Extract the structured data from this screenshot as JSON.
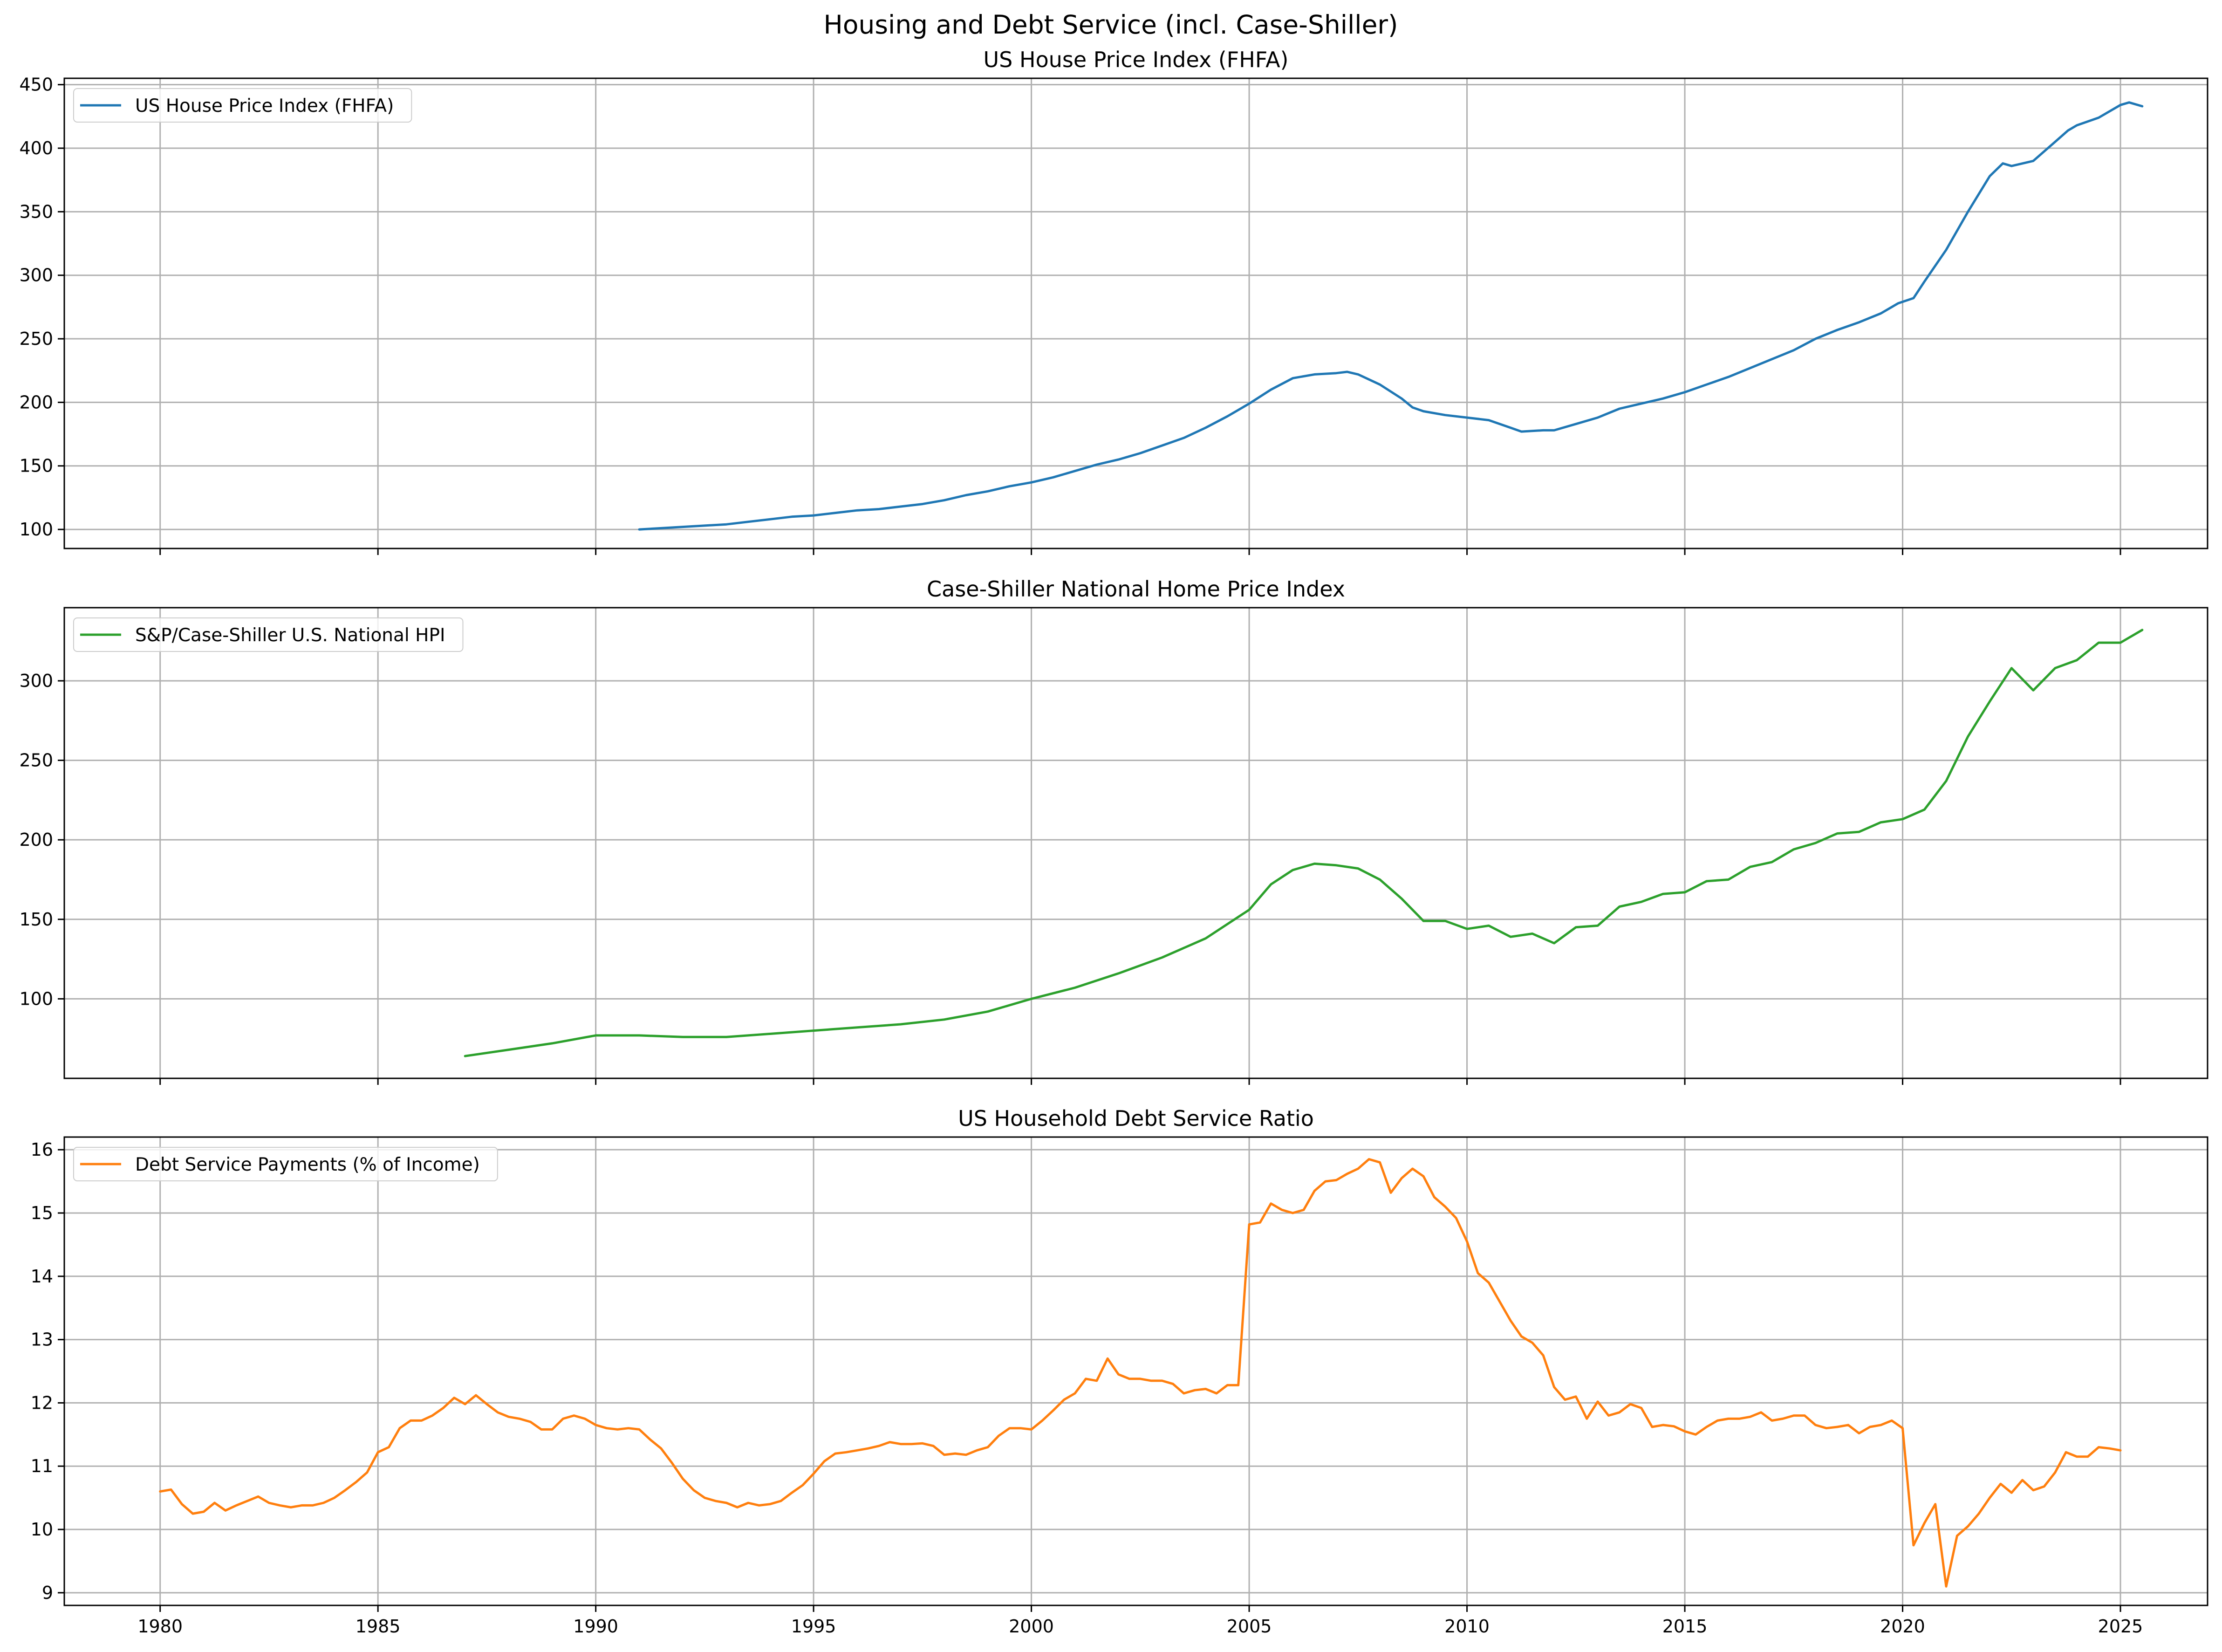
{
  "figure": {
    "title": "Housing and Debt Service (incl. Case-Shiller)"
  },
  "chart_data": [
    {
      "type": "line",
      "title": "US House Price Index (FHFA)",
      "xlabel": "",
      "ylabel": "",
      "xlim": [
        1977.8,
        2027.0
      ],
      "ylim": [
        85,
        455
      ],
      "yticks": [
        100,
        150,
        200,
        250,
        300,
        350,
        400,
        450
      ],
      "grid": true,
      "legend_position": "upper-left",
      "series": [
        {
          "name": "US House Price Index (FHFA)",
          "color": "#1f77b4",
          "x": [
            1991.0,
            1991.5,
            1992.0,
            1992.5,
            1993.0,
            1993.5,
            1994.0,
            1994.5,
            1995.0,
            1995.5,
            1996.0,
            1996.5,
            1997.0,
            1997.5,
            1998.0,
            1998.5,
            1999.0,
            1999.5,
            2000.0,
            2000.5,
            2001.0,
            2001.5,
            2002.0,
            2002.5,
            2003.0,
            2003.5,
            2004.0,
            2004.5,
            2005.0,
            2005.5,
            2006.0,
            2006.5,
            2007.0,
            2007.25,
            2007.5,
            2008.0,
            2008.5,
            2008.75,
            2009.0,
            2009.5,
            2010.0,
            2010.5,
            2011.0,
            2011.25,
            2011.75,
            2012.0,
            2012.5,
            2013.0,
            2013.5,
            2014.0,
            2014.5,
            2015.0,
            2015.5,
            2016.0,
            2016.5,
            2017.0,
            2017.5,
            2018.0,
            2018.5,
            2019.0,
            2019.5,
            2019.9,
            2020.25,
            2020.5,
            2021.0,
            2021.5,
            2022.0,
            2022.3,
            2022.5,
            2023.0,
            2023.5,
            2023.8,
            2024.0,
            2024.5,
            2025.0,
            2025.2,
            2025.5
          ],
          "values": [
            100,
            101,
            102,
            103,
            104,
            106,
            108,
            110,
            111,
            113,
            115,
            116,
            118,
            120,
            123,
            127,
            130,
            134,
            137,
            141,
            146,
            151,
            155,
            160,
            166,
            172,
            180,
            189,
            199,
            210,
            219,
            222,
            223,
            224,
            222,
            214,
            203,
            196,
            193,
            190,
            188,
            186,
            180,
            177,
            178,
            178,
            183,
            188,
            195,
            199,
            203,
            208,
            214,
            220,
            227,
            234,
            241,
            250,
            257,
            263,
            270,
            278,
            282,
            295,
            320,
            350,
            378,
            388,
            386,
            390,
            405,
            414,
            418,
            424,
            434,
            436,
            433
          ]
        }
      ]
    },
    {
      "type": "line",
      "title": "Case-Shiller National Home Price Index",
      "xlabel": "",
      "ylabel": "",
      "xlim": [
        1977.8,
        2027.0
      ],
      "ylim": [
        50,
        346
      ],
      "yticks": [
        100,
        150,
        200,
        250,
        300
      ],
      "grid": true,
      "legend_position": "upper-left",
      "series": [
        {
          "name": "S&P/Case-Shiller U.S. National HPI",
          "color": "#2ca02c",
          "x": [
            1987.0,
            1988.0,
            1989.0,
            1990.0,
            1991.0,
            1992.0,
            1993.0,
            1994.0,
            1995.0,
            1996.0,
            1997.0,
            1998.0,
            1999.0,
            2000.0,
            2001.0,
            2002.0,
            2003.0,
            2004.0,
            2005.0,
            2005.5,
            2006.0,
            2006.5,
            2007.0,
            2007.5,
            2008.0,
            2008.5,
            2009.0,
            2009.5,
            2010.0,
            2010.5,
            2011.0,
            2011.5,
            2012.0,
            2012.5,
            2013.0,
            2013.5,
            2014.0,
            2014.5,
            2015.0,
            2015.5,
            2016.0,
            2016.5,
            2017.0,
            2017.5,
            2018.0,
            2018.5,
            2019.0,
            2019.5,
            2020.0,
            2020.5,
            2021.0,
            2021.5,
            2022.0,
            2022.5,
            2023.0,
            2023.5,
            2024.0,
            2024.5,
            2025.0,
            2025.5
          ],
          "values": [
            64,
            68,
            72,
            77,
            77,
            76,
            76,
            78,
            80,
            82,
            84,
            87,
            92,
            100,
            107,
            116,
            126,
            138,
            156,
            172,
            181,
            185,
            184,
            182,
            175,
            163,
            149,
            149,
            144,
            146,
            139,
            141,
            135,
            145,
            146,
            158,
            161,
            166,
            167,
            174,
            175,
            183,
            186,
            194,
            198,
            204,
            205,
            211,
            213,
            219,
            237,
            265,
            287,
            308,
            294,
            308,
            313,
            324,
            324,
            332
          ]
        }
      ]
    },
    {
      "type": "line",
      "title": "US Household Debt Service Ratio",
      "xlabel": "",
      "ylabel": "",
      "xlim": [
        1977.8,
        2027.0
      ],
      "ylim": [
        8.8,
        16.2
      ],
      "xticks": [
        1980,
        1985,
        1990,
        1995,
        2000,
        2005,
        2010,
        2015,
        2020,
        2025
      ],
      "yticks": [
        9,
        10,
        11,
        12,
        13,
        14,
        15,
        16
      ],
      "grid": true,
      "legend_position": "upper-left",
      "series": [
        {
          "name": "Debt Service Payments (% of Income)",
          "color": "#ff7f0e",
          "x": [
            1980.0,
            1980.25,
            1980.5,
            1980.75,
            1981.0,
            1981.25,
            1981.5,
            1981.75,
            1982.0,
            1982.25,
            1982.5,
            1982.75,
            1983.0,
            1983.25,
            1983.5,
            1983.75,
            1984.0,
            1984.25,
            1984.5,
            1984.75,
            1985.0,
            1985.25,
            1985.5,
            1985.75,
            1986.0,
            1986.25,
            1986.5,
            1986.75,
            1987.0,
            1987.25,
            1987.5,
            1987.75,
            1988.0,
            1988.25,
            1988.5,
            1988.75,
            1989.0,
            1989.25,
            1989.5,
            1989.75,
            1990.0,
            1990.25,
            1990.5,
            1990.75,
            1991.0,
            1991.25,
            1991.5,
            1991.75,
            1992.0,
            1992.25,
            1992.5,
            1992.75,
            1993.0,
            1993.25,
            1993.5,
            1993.75,
            1994.0,
            1994.25,
            1994.5,
            1994.75,
            1995.0,
            1995.25,
            1995.5,
            1995.75,
            1996.0,
            1996.25,
            1996.5,
            1996.75,
            1997.0,
            1997.25,
            1997.5,
            1997.75,
            1998.0,
            1998.25,
            1998.5,
            1998.75,
            1999.0,
            1999.25,
            1999.5,
            1999.75,
            2000.0,
            2000.25,
            2000.5,
            2000.75,
            2001.0,
            2001.25,
            2001.5,
            2001.75,
            2002.0,
            2002.25,
            2002.5,
            2002.75,
            2003.0,
            2003.25,
            2003.5,
            2003.75,
            2004.0,
            2004.25,
            2004.5,
            2004.75,
            2005.0,
            2005.25,
            2005.5,
            2005.75,
            2006.0,
            2006.25,
            2006.5,
            2006.75,
            2007.0,
            2007.25,
            2007.5,
            2007.75,
            2008.0,
            2008.25,
            2008.5,
            2008.75,
            2009.0,
            2009.25,
            2009.5,
            2009.75,
            2010.0,
            2010.25,
            2010.5,
            2010.75,
            2011.0,
            2011.25,
            2011.5,
            2011.75,
            2012.0,
            2012.25,
            2012.5,
            2012.75,
            2013.0,
            2013.25,
            2013.5,
            2013.75,
            2014.0,
            2014.25,
            2014.5,
            2014.75,
            2015.0,
            2015.25,
            2015.5,
            2015.75,
            2016.0,
            2016.25,
            2016.5,
            2016.75,
            2017.0,
            2017.25,
            2017.5,
            2017.75,
            2018.0,
            2018.25,
            2018.5,
            2018.75,
            2019.0,
            2019.25,
            2019.5,
            2019.75,
            2020.0,
            2020.25,
            2020.5,
            2020.75,
            2021.0,
            2021.25,
            2021.5,
            2021.75,
            2022.0,
            2022.25,
            2022.5,
            2022.75,
            2023.0,
            2023.25,
            2023.5,
            2023.75,
            2024.0,
            2024.25,
            2024.5,
            2024.75,
            2025.0
          ],
          "values": [
            10.6,
            10.63,
            10.4,
            10.25,
            10.28,
            10.42,
            10.3,
            10.38,
            10.45,
            10.52,
            10.42,
            10.38,
            10.35,
            10.38,
            10.38,
            10.42,
            10.5,
            10.62,
            10.75,
            10.9,
            11.22,
            11.3,
            11.6,
            11.72,
            11.72,
            11.8,
            11.92,
            12.08,
            11.98,
            12.12,
            11.98,
            11.85,
            11.78,
            11.75,
            11.7,
            11.58,
            11.58,
            11.75,
            11.8,
            11.75,
            11.65,
            11.6,
            11.58,
            11.6,
            11.58,
            11.42,
            11.28,
            11.05,
            10.8,
            10.62,
            10.5,
            10.45,
            10.42,
            10.35,
            10.42,
            10.38,
            10.4,
            10.45,
            10.58,
            10.7,
            10.88,
            11.08,
            11.2,
            11.22,
            11.25,
            11.28,
            11.32,
            11.38,
            11.35,
            11.35,
            11.36,
            11.32,
            11.18,
            11.2,
            11.18,
            11.25,
            11.3,
            11.48,
            11.6,
            11.6,
            11.58,
            11.72,
            11.88,
            12.05,
            12.15,
            12.38,
            12.35,
            12.7,
            12.45,
            12.38,
            12.38,
            12.35,
            12.35,
            12.3,
            12.15,
            12.2,
            12.22,
            12.15,
            12.28,
            12.28,
            14.82,
            14.85,
            15.15,
            15.05,
            15.0,
            15.05,
            15.35,
            15.5,
            15.52,
            15.62,
            15.7,
            15.85,
            15.8,
            15.32,
            15.55,
            15.7,
            15.58,
            15.25,
            15.1,
            14.92,
            14.55,
            14.05,
            13.9,
            13.6,
            13.3,
            13.05,
            12.95,
            12.75,
            12.25,
            12.05,
            12.1,
            11.75,
            12.02,
            11.8,
            11.85,
            11.98,
            11.92,
            11.62,
            11.65,
            11.63,
            11.55,
            11.5,
            11.62,
            11.72,
            11.75,
            11.75,
            11.78,
            11.85,
            11.72,
            11.75,
            11.8,
            11.8,
            11.65,
            11.6,
            11.62,
            11.65,
            11.52,
            11.62,
            11.65,
            11.72,
            11.6,
            9.75,
            10.1,
            10.4,
            9.1,
            9.9,
            10.05,
            10.25,
            10.5,
            10.72,
            10.58,
            10.78,
            10.62,
            10.68,
            10.9,
            11.22,
            11.15,
            11.15,
            11.3,
            11.28,
            11.25
          ]
        }
      ]
    }
  ]
}
